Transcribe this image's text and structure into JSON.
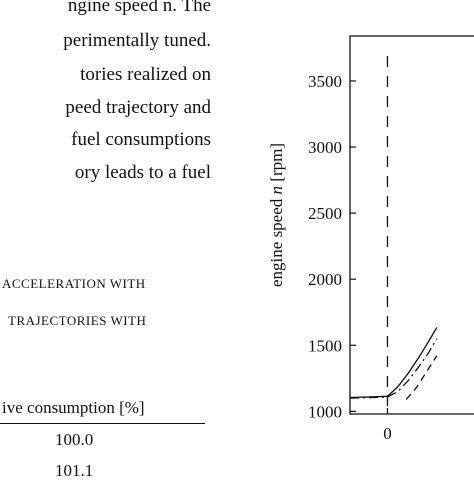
{
  "body_text": {
    "lines": [
      "ngine speed n. The",
      "perimentally tuned.",
      "tories realized on",
      "peed trajectory and",
      "fuel consumptions",
      "ory leads to a fuel"
    ]
  },
  "table": {
    "caption_lines": [
      "ACCELERATION WITH",
      "TRAJECTORIES WITH"
    ],
    "column_header": "ive consumption [%]",
    "rows": [
      "100.0",
      "101.1"
    ]
  },
  "chart_data": {
    "type": "line",
    "ylabel": "engine speed n [rpm]",
    "yticks": [
      1000,
      1500,
      2000,
      2500,
      3000,
      3500
    ],
    "xticks": [
      0
    ],
    "xlim": [
      -1.1,
      2.6
    ],
    "ylim": [
      980,
      3840
    ],
    "vline_x": 0,
    "series": [
      {
        "style": "solid",
        "points": [
          [
            -1.1,
            1105
          ],
          [
            -0.4,
            1110
          ],
          [
            0,
            1115
          ],
          [
            0.3,
            1185
          ],
          [
            0.6,
            1285
          ],
          [
            0.9,
            1400
          ],
          [
            1.2,
            1525
          ],
          [
            1.45,
            1635
          ]
        ]
      },
      {
        "style": "dashdot",
        "points": [
          [
            -1.1,
            1100
          ],
          [
            0,
            1108
          ],
          [
            0.3,
            1150
          ],
          [
            0.6,
            1230
          ],
          [
            0.9,
            1330
          ],
          [
            1.2,
            1440
          ],
          [
            1.45,
            1550
          ]
        ]
      },
      {
        "style": "dashed",
        "points": [
          [
            0.55,
            1090
          ],
          [
            0.85,
            1180
          ],
          [
            1.15,
            1300
          ],
          [
            1.45,
            1420
          ]
        ]
      }
    ]
  }
}
